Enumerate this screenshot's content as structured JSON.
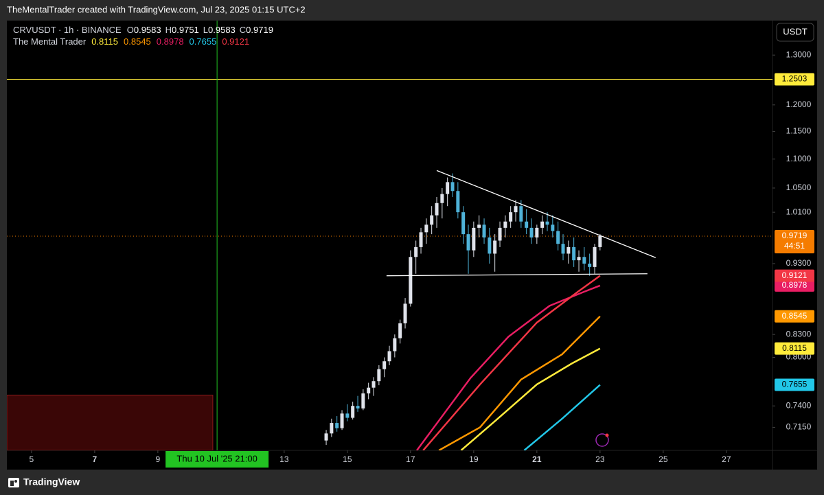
{
  "header": "TheMentalTrader created with TradingView.com, Jul 23, 2025 01:15 UTC+2",
  "footer": "TradingView",
  "currency_button": "USDT",
  "chart_data": {
    "type": "candlestick",
    "log_scale": true,
    "legend": {
      "symbol": "CRVUSDT · 1h · BINANCE",
      "fields": [
        {
          "label": "O",
          "value": 0.9583
        },
        {
          "label": "H",
          "value": 0.9751
        },
        {
          "label": "L",
          "value": 0.9583
        },
        {
          "label": "C",
          "value": 0.9719
        }
      ],
      "indicator": "The Mental Trader"
    },
    "countdown": "44:51",
    "last_price_color": "#f57c00",
    "up_color": "#e0e3eb",
    "down_color": "#4fb3d9",
    "xlim": [
      4.22,
      28.46
    ],
    "xticks": [
      5,
      7,
      9,
      13,
      15,
      17,
      19,
      21,
      23,
      25,
      27
    ],
    "ylim": [
      0.689,
      1.374
    ],
    "yticks": [
      {
        "value": 1.3,
        "label": "1.3000"
      },
      {
        "value": 1.2,
        "label": "1.2000"
      },
      {
        "value": 1.15,
        "label": "1.1500"
      },
      {
        "value": 1.1,
        "label": "1.1000"
      },
      {
        "value": 1.05,
        "label": "1.0500"
      },
      {
        "value": 1.01,
        "label": "1.0100"
      },
      {
        "value": 0.93,
        "label": "0.9300"
      },
      {
        "value": 0.83,
        "label": "0.8300"
      },
      {
        "value": 0.8,
        "label": "0.8000"
      },
      {
        "value": 0.74,
        "label": "0.7400"
      },
      {
        "value": 0.715,
        "label": "0.7150"
      }
    ],
    "x": [
      14.33,
      14.5,
      14.67,
      14.83,
      15,
      15.17,
      15.33,
      15.5,
      15.67,
      15.83,
      16,
      16.17,
      16.33,
      16.5,
      16.67,
      16.83,
      17,
      17.17,
      17.33,
      17.5,
      17.67,
      17.83,
      18,
      18.17,
      18.33,
      18.5,
      18.67,
      18.83,
      19,
      19.17,
      19.33,
      19.5,
      19.67,
      19.83,
      20,
      20.17,
      20.33,
      20.5,
      20.67,
      20.83,
      21,
      21.17,
      21.33,
      21.5,
      21.67,
      21.83,
      22,
      22.17,
      22.33,
      22.5,
      22.67,
      22.83,
      23
    ],
    "open": [
      0.7,
      0.708,
      0.72,
      0.714,
      0.731,
      0.726,
      0.74,
      0.737,
      0.755,
      0.762,
      0.77,
      0.785,
      0.795,
      0.808,
      0.825,
      0.845,
      0.872,
      0.94,
      0.955,
      0.978,
      0.99,
      1.005,
      1.025,
      1.04,
      1.06,
      1.045,
      1.01,
      0.975,
      0.95,
      0.985,
      0.99,
      0.97,
      0.945,
      0.965,
      0.985,
      0.995,
      1.01,
      1.02,
      0.995,
      0.985,
      0.97,
      0.985,
      0.995,
      0.99,
      0.98,
      0.96,
      0.945,
      0.955,
      0.935,
      0.94,
      0.93,
      0.925,
      0.955
    ],
    "high": [
      0.712,
      0.725,
      0.728,
      0.735,
      0.742,
      0.745,
      0.752,
      0.76,
      0.768,
      0.775,
      0.79,
      0.8,
      0.815,
      0.83,
      0.85,
      0.88,
      0.95,
      0.965,
      0.985,
      1.0,
      1.02,
      1.035,
      1.05,
      1.068,
      1.075,
      1.06,
      1.02,
      0.99,
      0.995,
      1.005,
      1.0,
      0.985,
      0.975,
      0.995,
      1.005,
      1.02,
      1.03,
      1.03,
      1.015,
      1.0,
      0.99,
      1.005,
      1.01,
      1.005,
      0.995,
      0.975,
      0.965,
      0.97,
      0.95,
      0.955,
      0.945,
      0.96,
      0.975
    ],
    "low": [
      0.695,
      0.704,
      0.71,
      0.712,
      0.722,
      0.724,
      0.733,
      0.735,
      0.748,
      0.752,
      0.765,
      0.775,
      0.79,
      0.8,
      0.818,
      0.838,
      0.868,
      0.915,
      0.945,
      0.96,
      0.975,
      0.985,
      1.0,
      1.02,
      1.035,
      1.0,
      0.96,
      0.915,
      0.94,
      0.97,
      0.96,
      0.93,
      0.918,
      0.955,
      0.97,
      0.985,
      0.995,
      0.985,
      0.975,
      0.96,
      0.96,
      0.975,
      0.98,
      0.97,
      0.95,
      0.935,
      0.93,
      0.925,
      0.918,
      0.92,
      0.912,
      0.915,
      0.95
    ],
    "close": [
      0.708,
      0.72,
      0.714,
      0.731,
      0.726,
      0.74,
      0.737,
      0.755,
      0.762,
      0.77,
      0.785,
      0.795,
      0.808,
      0.825,
      0.845,
      0.872,
      0.94,
      0.955,
      0.978,
      0.99,
      1.005,
      1.025,
      1.04,
      1.06,
      1.045,
      1.01,
      0.975,
      0.95,
      0.985,
      0.99,
      0.97,
      0.945,
      0.965,
      0.985,
      0.995,
      1.01,
      1.02,
      0.995,
      0.985,
      0.97,
      0.985,
      0.995,
      0.99,
      0.98,
      0.96,
      0.945,
      0.955,
      0.935,
      0.94,
      0.93,
      0.925,
      0.955,
      0.972
    ],
    "series": [
      {
        "color": "#ffeb3b",
        "x": [
          18.6,
          19.7,
          21.0,
          22.1,
          23.0
        ],
        "values": [
          0.689,
          0.723,
          0.766,
          0.792,
          0.8115
        ]
      },
      {
        "color": "#ff9800",
        "x": [
          17.9,
          19.2,
          20.5,
          21.8,
          23.0
        ],
        "values": [
          0.689,
          0.715,
          0.772,
          0.804,
          0.8545
        ]
      },
      {
        "color": "#e91e63",
        "x": [
          17.2,
          18.9,
          20.1,
          21.4,
          22.5,
          23.0
        ],
        "values": [
          0.689,
          0.774,
          0.827,
          0.869,
          0.889,
          0.8978
        ]
      },
      {
        "color": "#22c7e8",
        "x": [
          20.6,
          21.8,
          23.0
        ],
        "values": [
          0.689,
          0.725,
          0.7655
        ]
      },
      {
        "color": "#f23645",
        "x": [
          17.4,
          19.2,
          21.0,
          22.3,
          23.0
        ],
        "values": [
          0.689,
          0.766,
          0.846,
          0.889,
          0.9121
        ]
      }
    ],
    "hline": {
      "value": 1.2503,
      "color": "#ffeb3b"
    },
    "vline": {
      "x": 10.875,
      "color": "#22c322",
      "label": "Thu 10 Jul '25  21:00"
    },
    "zone": {
      "x": [
        4.22,
        10.74
      ],
      "y": [
        0.689,
        0.753
      ],
      "color": "#3a0606"
    },
    "trendlines": [
      {
        "x": [
          17.83,
          24.76
        ],
        "y": [
          1.08,
          0.939
        ]
      },
      {
        "x": [
          16.24,
          24.5
        ],
        "y": [
          0.912,
          0.915
        ]
      }
    ]
  }
}
